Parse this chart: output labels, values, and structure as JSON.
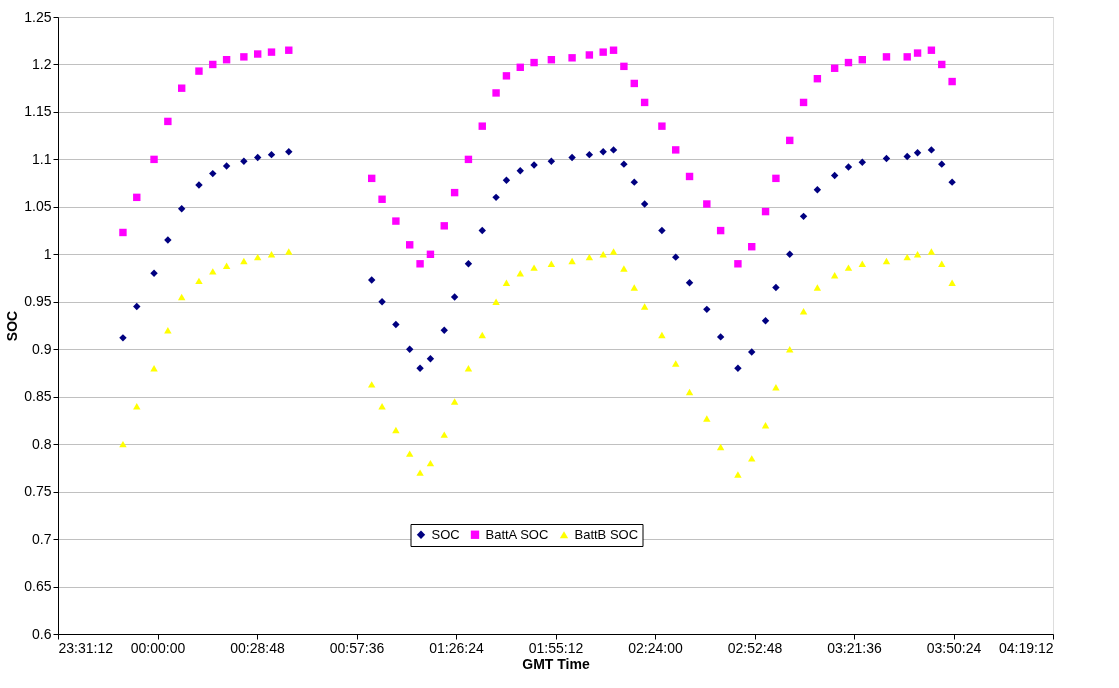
{
  "chart_data": {
    "type": "scatter",
    "xlabel": "GMT Time",
    "ylabel": "SOC",
    "x": [
      "2000-01-01T23:50",
      "2000-01-01T23:54",
      "2000-01-01T23:59",
      "2000-01-02T00:03",
      "2000-01-02T00:07",
      "2000-01-02T00:12",
      "2000-01-02T00:16",
      "2000-01-02T00:20",
      "2000-01-02T00:25",
      "2000-01-02T00:29",
      "2000-01-02T00:33",
      "2000-01-02T00:38",
      "2000-01-02T01:02",
      "2000-01-02T01:05",
      "2000-01-02T01:09",
      "2000-01-02T01:13",
      "2000-01-02T01:16",
      "2000-01-02T01:19",
      "2000-01-02T01:23",
      "2000-01-02T01:26",
      "2000-01-02T01:30",
      "2000-01-02T01:34",
      "2000-01-02T01:38",
      "2000-01-02T01:41",
      "2000-01-02T01:45",
      "2000-01-02T01:49",
      "2000-01-02T01:54",
      "2000-01-02T02:00",
      "2000-01-02T02:05",
      "2000-01-02T02:09",
      "2000-01-02T02:12",
      "2000-01-02T02:15",
      "2000-01-02T02:18",
      "2000-01-02T02:21",
      "2000-01-02T02:26",
      "2000-01-02T02:30",
      "2000-01-02T02:34",
      "2000-01-02T02:39",
      "2000-01-02T02:43",
      "2000-01-02T02:48",
      "2000-01-02T02:52",
      "2000-01-02T02:56",
      "2000-01-02T02:59",
      "2000-01-02T03:03",
      "2000-01-02T03:07",
      "2000-01-02T03:11",
      "2000-01-02T03:16",
      "2000-01-02T03:20",
      "2000-01-02T03:24",
      "2000-01-02T03:31",
      "2000-01-02T03:37",
      "2000-01-02T03:40",
      "2000-01-02T03:44",
      "2000-01-02T03:47",
      "2000-01-02T03:50"
    ],
    "series": [
      {
        "name": "SOC",
        "color": "#000080",
        "marker": "diamond",
        "values": [
          0.912,
          0.945,
          0.98,
          1.015,
          1.048,
          1.073,
          1.085,
          1.093,
          1.098,
          1.102,
          1.105,
          1.108,
          0.973,
          0.95,
          0.926,
          0.9,
          0.88,
          0.89,
          0.92,
          0.955,
          0.99,
          1.025,
          1.06,
          1.078,
          1.088,
          1.094,
          1.098,
          1.102,
          1.105,
          1.108,
          1.11,
          1.095,
          1.076,
          1.053,
          1.025,
          0.997,
          0.97,
          0.942,
          0.913,
          0.88,
          0.897,
          0.93,
          0.965,
          1.0,
          1.04,
          1.068,
          1.083,
          1.092,
          1.097,
          1.101,
          1.103,
          1.107,
          1.11,
          1.095,
          1.076
        ]
      },
      {
        "name": "BattA SOC",
        "color": "#ff00ff",
        "marker": "square",
        "values": [
          1.023,
          1.06,
          1.1,
          1.14,
          1.175,
          1.193,
          1.2,
          1.205,
          1.208,
          1.211,
          1.213,
          1.215,
          1.08,
          1.058,
          1.035,
          1.01,
          0.99,
          1.0,
          1.03,
          1.065,
          1.1,
          1.135,
          1.17,
          1.188,
          1.197,
          1.202,
          1.205,
          1.207,
          1.21,
          1.213,
          1.215,
          1.198,
          1.18,
          1.16,
          1.135,
          1.11,
          1.082,
          1.053,
          1.025,
          0.99,
          1.008,
          1.045,
          1.08,
          1.12,
          1.16,
          1.185,
          1.196,
          1.202,
          1.205,
          1.208,
          1.208,
          1.212,
          1.215,
          1.2,
          1.182
        ]
      },
      {
        "name": "BattB SOC",
        "color": "#ffff00",
        "marker": "triangle",
        "values": [
          0.8,
          0.84,
          0.88,
          0.92,
          0.955,
          0.972,
          0.982,
          0.988,
          0.993,
          0.997,
          1.0,
          1.003,
          0.863,
          0.84,
          0.815,
          0.79,
          0.77,
          0.78,
          0.81,
          0.845,
          0.88,
          0.915,
          0.95,
          0.97,
          0.98,
          0.986,
          0.99,
          0.993,
          0.997,
          1.0,
          1.003,
          0.985,
          0.965,
          0.945,
          0.915,
          0.885,
          0.855,
          0.827,
          0.797,
          0.768,
          0.785,
          0.82,
          0.86,
          0.9,
          0.94,
          0.965,
          0.978,
          0.986,
          0.99,
          0.993,
          0.997,
          1.0,
          1.003,
          0.99,
          0.97
        ]
      }
    ],
    "xlim": [
      "2000-01-01T23:31:12",
      "2000-01-02T04:19:12"
    ],
    "xticks": [
      {
        "value": "2000-01-01T23:31:12",
        "label": "23:31:12"
      },
      {
        "value": "2000-01-02T00:00:00",
        "label": "00:00:00"
      },
      {
        "value": "2000-01-02T00:28:48",
        "label": "00:28:48"
      },
      {
        "value": "2000-01-02T00:57:36",
        "label": "00:57:36"
      },
      {
        "value": "2000-01-02T01:26:24",
        "label": "01:26:24"
      },
      {
        "value": "2000-01-02T01:55:12",
        "label": "01:55:12"
      },
      {
        "value": "2000-01-02T02:24:00",
        "label": "02:24:00"
      },
      {
        "value": "2000-01-02T02:52:48",
        "label": "02:52:48"
      },
      {
        "value": "2000-01-02T03:21:36",
        "label": "03:21:36"
      },
      {
        "value": "2000-01-02T03:50:24",
        "label": "03:50:24"
      },
      {
        "value": "2000-01-02T04:19:12",
        "label": "04:19:12"
      }
    ],
    "ylim": [
      0.6,
      1.25
    ],
    "yticks": [
      0.6,
      0.65,
      0.7,
      0.75,
      0.8,
      0.85,
      0.9,
      0.95,
      1,
      1.05,
      1.1,
      1.15,
      1.2,
      1.25
    ],
    "grid": "y",
    "legend": "bottom"
  }
}
